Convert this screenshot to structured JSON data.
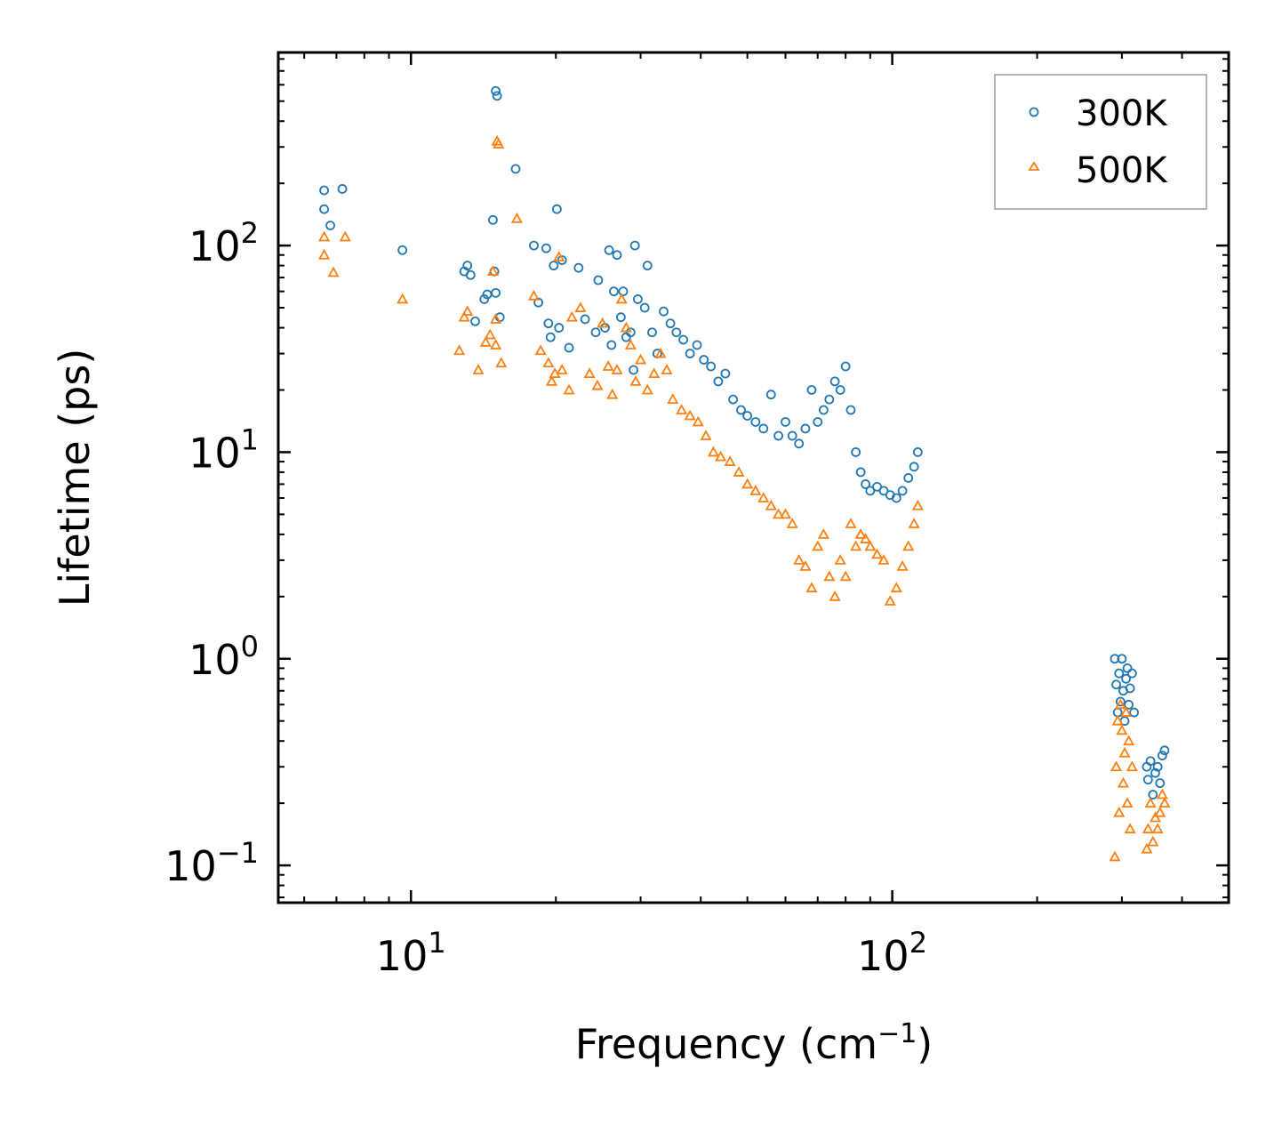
{
  "chart_data": {
    "type": "scatter",
    "xscale": "log",
    "yscale": "log",
    "xlim": [
      5.3,
      500
    ],
    "ylim": [
      0.066,
      860
    ],
    "xlabel": "Frequency (cm⁻¹)",
    "ylabel": "Lifetime (ps)",
    "xlabel_main": "Frequency (cm",
    "xlabel_sup": "−1",
    "xlabel_close": ")",
    "x_ticks": [
      {
        "value": 10,
        "base": "10",
        "exp": "1"
      },
      {
        "value": 100,
        "base": "10",
        "exp": "2"
      }
    ],
    "y_ticks": [
      {
        "value": 0.1,
        "base": "10",
        "exp": "−1"
      },
      {
        "value": 1,
        "base": "10",
        "exp": "0"
      },
      {
        "value": 10,
        "base": "10",
        "exp": "1"
      },
      {
        "value": 100,
        "base": "10",
        "exp": "2"
      }
    ],
    "legend_position": "top-right",
    "series": [
      {
        "name": "300K",
        "marker": "circle",
        "color": "#1f77b4",
        "points": [
          [
            6.6,
            185
          ],
          [
            6.6,
            150
          ],
          [
            6.8,
            125
          ],
          [
            7.2,
            188
          ],
          [
            9.6,
            95
          ],
          [
            12.9,
            75
          ],
          [
            13.1,
            80
          ],
          [
            13.3,
            72
          ],
          [
            13.6,
            43
          ],
          [
            14.2,
            55
          ],
          [
            14.4,
            58
          ],
          [
            14.8,
            133
          ],
          [
            14.9,
            75
          ],
          [
            15.0,
            59
          ],
          [
            15.0,
            560
          ],
          [
            15.1,
            530
          ],
          [
            15.3,
            45
          ],
          [
            16.5,
            235
          ],
          [
            18.0,
            100
          ],
          [
            18.4,
            53
          ],
          [
            19.1,
            97
          ],
          [
            19.3,
            42
          ],
          [
            19.5,
            36
          ],
          [
            19.8,
            80
          ],
          [
            20.1,
            150
          ],
          [
            20.3,
            40
          ],
          [
            20.6,
            85
          ],
          [
            21.3,
            32
          ],
          [
            22.3,
            78
          ],
          [
            23.0,
            44
          ],
          [
            24.2,
            38
          ],
          [
            24.5,
            68
          ],
          [
            25.3,
            40
          ],
          [
            25.8,
            95
          ],
          [
            26.1,
            33
          ],
          [
            26.4,
            60
          ],
          [
            26.8,
            90
          ],
          [
            27.3,
            45
          ],
          [
            27.6,
            60
          ],
          [
            28.0,
            36
          ],
          [
            28.6,
            38
          ],
          [
            29.0,
            25
          ],
          [
            29.2,
            100
          ],
          [
            29.6,
            55
          ],
          [
            30.6,
            50
          ],
          [
            31.0,
            80
          ],
          [
            31.7,
            38
          ],
          [
            32.5,
            30
          ],
          [
            33.5,
            48
          ],
          [
            34.6,
            42
          ],
          [
            35.6,
            38
          ],
          [
            36.8,
            35
          ],
          [
            38.0,
            30
          ],
          [
            39.3,
            33
          ],
          [
            40.6,
            28
          ],
          [
            42.0,
            26
          ],
          [
            43.5,
            22
          ],
          [
            45.0,
            24
          ],
          [
            46.7,
            18
          ],
          [
            48.5,
            16
          ],
          [
            50.0,
            15
          ],
          [
            52.0,
            14
          ],
          [
            54.0,
            13
          ],
          [
            56.0,
            19
          ],
          [
            58.0,
            12
          ],
          [
            60.0,
            14
          ],
          [
            62.0,
            12
          ],
          [
            64.0,
            11
          ],
          [
            66.0,
            13
          ],
          [
            68.0,
            20
          ],
          [
            70.0,
            14
          ],
          [
            72.0,
            16
          ],
          [
            74.0,
            18
          ],
          [
            76.0,
            22
          ],
          [
            78.0,
            20
          ],
          [
            80.0,
            26
          ],
          [
            82.0,
            16
          ],
          [
            84.0,
            10
          ],
          [
            86.0,
            8
          ],
          [
            88.0,
            7
          ],
          [
            90.0,
            6.5
          ],
          [
            93.0,
            6.8
          ],
          [
            96.0,
            6.5
          ],
          [
            99.0,
            6.2
          ],
          [
            102.0,
            6.0
          ],
          [
            105.0,
            6.5
          ],
          [
            108.0,
            7.5
          ],
          [
            111.0,
            8.5
          ],
          [
            113.0,
            10
          ],
          [
            290,
            1.0
          ],
          [
            292,
            0.75
          ],
          [
            294,
            0.55
          ],
          [
            296,
            0.85
          ],
          [
            298,
            0.62
          ],
          [
            300,
            1.0
          ],
          [
            302,
            0.7
          ],
          [
            304,
            0.5
          ],
          [
            306,
            0.8
          ],
          [
            308,
            0.9
          ],
          [
            310,
            0.6
          ],
          [
            312,
            0.72
          ],
          [
            315,
            0.85
          ],
          [
            318,
            0.55
          ],
          [
            338,
            0.3
          ],
          [
            340,
            0.26
          ],
          [
            344,
            0.32
          ],
          [
            348,
            0.22
          ],
          [
            352,
            0.28
          ],
          [
            356,
            0.3
          ],
          [
            360,
            0.25
          ],
          [
            364,
            0.34
          ],
          [
            368,
            0.36
          ]
        ]
      },
      {
        "name": "500K",
        "marker": "triangle",
        "color": "#ff7f0e",
        "points": [
          [
            6.6,
            110
          ],
          [
            6.6,
            90
          ],
          [
            6.9,
            74
          ],
          [
            7.3,
            110
          ],
          [
            9.6,
            55
          ],
          [
            12.6,
            31
          ],
          [
            12.9,
            45
          ],
          [
            13.1,
            48
          ],
          [
            13.8,
            25
          ],
          [
            14.3,
            34
          ],
          [
            14.6,
            37
          ],
          [
            14.8,
            75
          ],
          [
            15.0,
            44
          ],
          [
            15.0,
            33
          ],
          [
            15.1,
            320
          ],
          [
            15.2,
            310
          ],
          [
            15.4,
            27
          ],
          [
            16.6,
            135
          ],
          [
            18.0,
            57
          ],
          [
            18.6,
            31
          ],
          [
            19.3,
            27
          ],
          [
            19.6,
            22
          ],
          [
            19.9,
            24
          ],
          [
            20.3,
            88
          ],
          [
            20.6,
            25
          ],
          [
            21.3,
            20
          ],
          [
            21.6,
            45
          ],
          [
            22.5,
            50
          ],
          [
            23.5,
            24
          ],
          [
            24.4,
            21
          ],
          [
            25.0,
            42
          ],
          [
            25.7,
            26
          ],
          [
            26.2,
            19
          ],
          [
            26.8,
            25
          ],
          [
            27.4,
            55
          ],
          [
            28.0,
            40
          ],
          [
            28.6,
            33
          ],
          [
            29.3,
            22
          ],
          [
            30.0,
            28
          ],
          [
            31.0,
            20
          ],
          [
            32.0,
            24
          ],
          [
            33.0,
            30
          ],
          [
            34.0,
            25
          ],
          [
            35.0,
            18
          ],
          [
            36.5,
            16
          ],
          [
            38.0,
            15
          ],
          [
            39.5,
            14
          ],
          [
            41.0,
            12
          ],
          [
            42.5,
            10
          ],
          [
            44.0,
            9.5
          ],
          [
            46.0,
            9
          ],
          [
            48.0,
            8
          ],
          [
            50.0,
            7
          ],
          [
            52.0,
            6.5
          ],
          [
            54.0,
            6
          ],
          [
            56.0,
            5.5
          ],
          [
            58.0,
            5
          ],
          [
            60.0,
            5
          ],
          [
            62.0,
            4.5
          ],
          [
            64.0,
            3
          ],
          [
            66.0,
            2.8
          ],
          [
            68.0,
            2.2
          ],
          [
            70.0,
            3.5
          ],
          [
            72.0,
            4
          ],
          [
            74.0,
            2.5
          ],
          [
            76.0,
            2
          ],
          [
            78.0,
            3
          ],
          [
            80.0,
            2.5
          ],
          [
            82.0,
            4.5
          ],
          [
            84.0,
            3.5
          ],
          [
            86.0,
            4
          ],
          [
            88.0,
            3.8
          ],
          [
            90.0,
            3.5
          ],
          [
            93.0,
            3.2
          ],
          [
            96.0,
            3
          ],
          [
            99.0,
            1.9
          ],
          [
            102.0,
            2.2
          ],
          [
            105.0,
            2.8
          ],
          [
            108.0,
            3.5
          ],
          [
            111.0,
            4.5
          ],
          [
            113.0,
            5.5
          ],
          [
            290,
            0.11
          ],
          [
            292,
            0.3
          ],
          [
            294,
            0.5
          ],
          [
            296,
            0.18
          ],
          [
            298,
            0.6
          ],
          [
            300,
            0.45
          ],
          [
            302,
            0.25
          ],
          [
            304,
            0.35
          ],
          [
            306,
            0.55
          ],
          [
            308,
            0.2
          ],
          [
            310,
            0.4
          ],
          [
            312,
            0.15
          ],
          [
            315,
            0.3
          ],
          [
            338,
            0.12
          ],
          [
            340,
            0.15
          ],
          [
            344,
            0.2
          ],
          [
            348,
            0.13
          ],
          [
            352,
            0.17
          ],
          [
            356,
            0.15
          ],
          [
            360,
            0.18
          ],
          [
            364,
            0.22
          ],
          [
            368,
            0.2
          ]
        ]
      }
    ]
  }
}
